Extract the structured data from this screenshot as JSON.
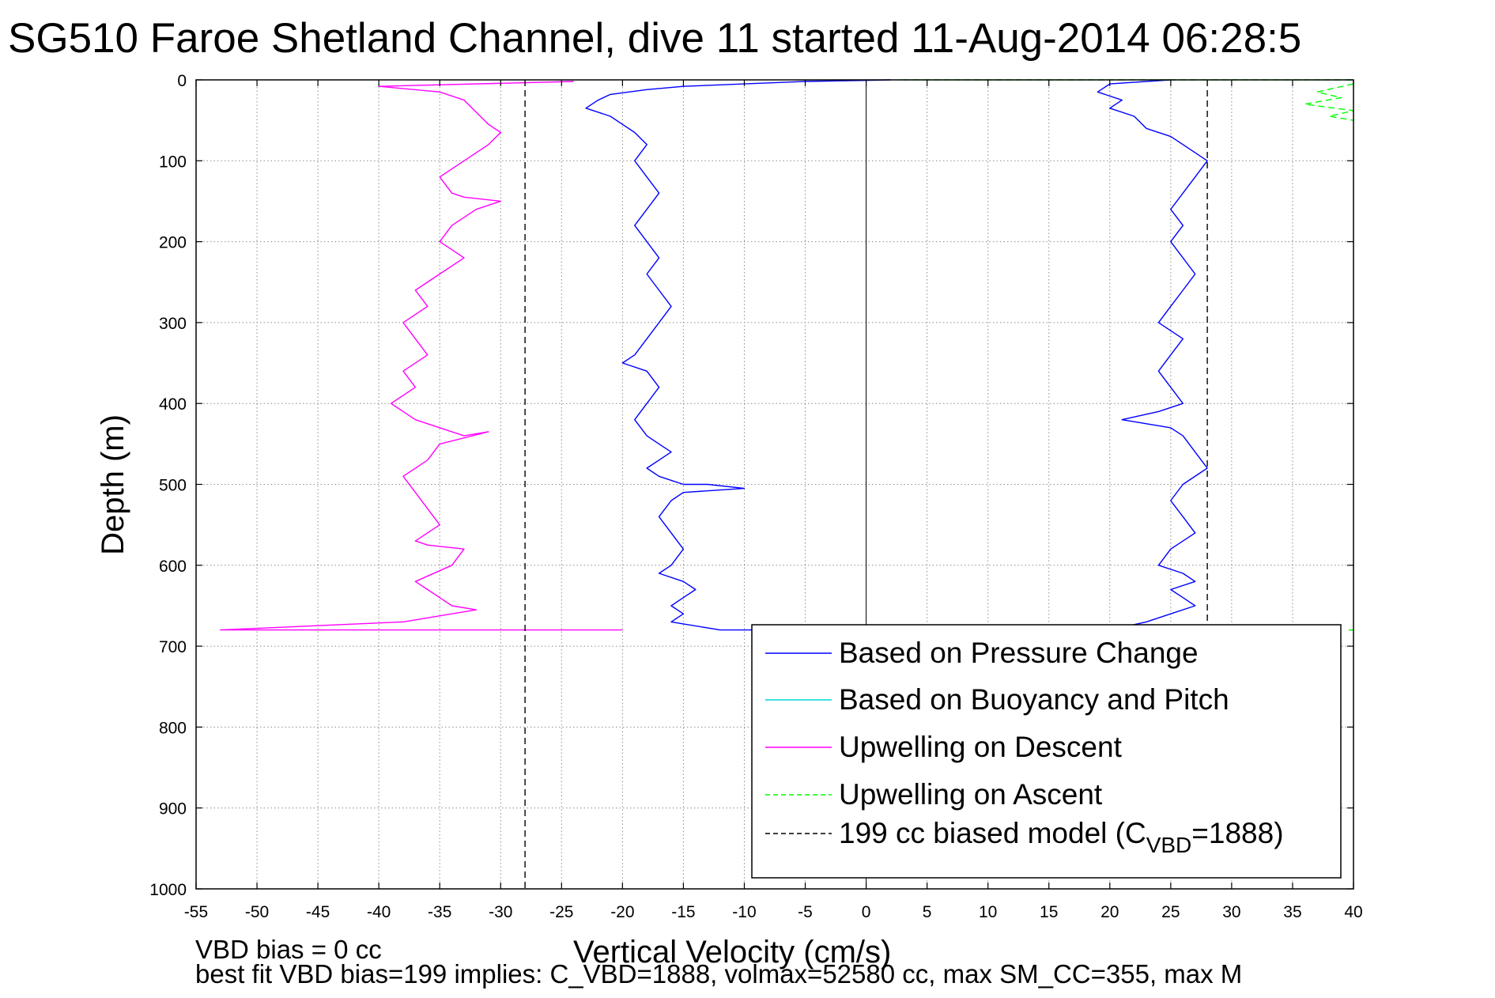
{
  "chart_data": {
    "type": "line",
    "title": "SG510 Faroe Shetland Channel, dive 11 started 11-Aug-2014 06:28:5",
    "xlabel": "Vertical Velocity (cm/s)",
    "ylabel": "Depth (m)",
    "xlim": [
      -55,
      40
    ],
    "ylim": [
      0,
      1000
    ],
    "y_reversed": true,
    "grid": true,
    "legend_position": "lower-right",
    "xticks": [
      "-55",
      "-50",
      "-45",
      "-40",
      "-35",
      "-30",
      "-25",
      "-20",
      "-15",
      "-10",
      "-5",
      "0",
      "5",
      "10",
      "15",
      "20",
      "25",
      "30",
      "35",
      "40"
    ],
    "yticks": [
      "0",
      "100",
      "200",
      "300",
      "400",
      "500",
      "600",
      "700",
      "800",
      "900",
      "1000"
    ],
    "zero_line_x": 0,
    "series": [
      {
        "name": "Based on Pressure Change",
        "color": "#0000ff",
        "style": "solid",
        "segments": [
          {
            "x": [
              2,
              -5,
              -10,
              -15,
              -18,
              -21,
              -22,
              -23,
              -21,
              -20,
              -19,
              -18,
              -19,
              -18,
              -17,
              -18,
              -19,
              -18,
              -17,
              -18,
              -17,
              -16,
              -17,
              -18,
              -19,
              -20,
              -18,
              -17,
              -18,
              -19,
              -18,
              -17,
              -16,
              -17,
              -18,
              -17,
              -16,
              -15,
              -13,
              -10,
              -15,
              -16,
              -17,
              -16,
              -15,
              -16,
              -17,
              -15,
              -14,
              -15,
              -16,
              -15,
              -16,
              -12,
              -3
            ],
            "y": [
              0,
              2,
              5,
              8,
              12,
              18,
              25,
              35,
              45,
              55,
              65,
              80,
              100,
              120,
              140,
              160,
              180,
              200,
              220,
              240,
              260,
              280,
              300,
              320,
              340,
              350,
              360,
              380,
              400,
              420,
              440,
              450,
              460,
              470,
              480,
              490,
              495,
              500,
              500,
              505,
              510,
              520,
              540,
              560,
              580,
              600,
              610,
              620,
              630,
              640,
              650,
              660,
              670,
              680,
              680
            ]
          },
          {
            "x": [
              25,
              20,
              19,
              21,
              20,
              22,
              23,
              25,
              26,
              27,
              28,
              27,
              26,
              25,
              26,
              25,
              26,
              27,
              26,
              25,
              24,
              26,
              25,
              24,
              25,
              26,
              24,
              21,
              25,
              26,
              27,
              28,
              26,
              25,
              26,
              27,
              25,
              24,
              26,
              27,
              25,
              26,
              27,
              25,
              23,
              20
            ],
            "y": [
              0,
              5,
              15,
              25,
              35,
              45,
              60,
              70,
              80,
              90,
              100,
              120,
              140,
              160,
              180,
              200,
              220,
              240,
              260,
              280,
              300,
              320,
              340,
              360,
              380,
              400,
              410,
              420,
              430,
              440,
              460,
              480,
              500,
              520,
              540,
              560,
              580,
              600,
              610,
              620,
              630,
              640,
              650,
              660,
              670,
              680
            ]
          }
        ]
      },
      {
        "name": "Based on Buoyancy and Pitch",
        "color": "#00d7d7",
        "style": "solid",
        "segments": []
      },
      {
        "name": "Upwelling on Descent",
        "color": "#ff00ff",
        "style": "solid",
        "segments": [
          {
            "x": [
              -24,
              -40,
              -35,
              -33,
              -32,
              -31,
              -30,
              -31,
              -33,
              -35,
              -34,
              -33,
              -30,
              -32,
              -34,
              -35,
              -33,
              -35,
              -37,
              -36,
              -38,
              -37,
              -36,
              -38,
              -37,
              -39,
              -38,
              -37,
              -35,
              -33,
              -31,
              -35,
              -36,
              -38,
              -37,
              -36,
              -35,
              -37,
              -36,
              -33,
              -34,
              -37,
              -36,
              -35,
              -34,
              -32,
              -34,
              -38,
              -53,
              -20
            ],
            "y": [
              2,
              8,
              15,
              25,
              40,
              55,
              65,
              80,
              100,
              120,
              140,
              145,
              150,
              160,
              180,
              200,
              220,
              240,
              260,
              280,
              300,
              320,
              340,
              360,
              380,
              400,
              410,
              420,
              430,
              440,
              435,
              450,
              470,
              490,
              510,
              530,
              550,
              570,
              575,
              580,
              600,
              620,
              630,
              640,
              650,
              655,
              660,
              670,
              680,
              680
            ]
          }
        ]
      },
      {
        "name": "Upwelling on Ascent",
        "color": "#00ff00",
        "style": "dashed",
        "segments": [
          {
            "x": [
              3,
              15,
              30,
              40
            ],
            "y": [
              0,
              0,
              0,
              0
            ]
          },
          {
            "x": [
              40,
              37,
              39,
              36,
              40,
              38,
              40
            ],
            "y": [
              5,
              15,
              22,
              30,
              38,
              45,
              50
            ]
          },
          {
            "x": [
              40
            ],
            "y": [
              680
            ]
          }
        ]
      },
      {
        "name": "199 cc biased model (C_VBD=1888)",
        "color": "#000000",
        "style": "dashed",
        "segments": [
          {
            "x": [
              -28,
              -28
            ],
            "y": [
              0,
              1000
            ]
          },
          {
            "x": [
              28,
              28
            ],
            "y": [
              0,
              680
            ]
          }
        ]
      }
    ],
    "legend": [
      {
        "label": "Based on Pressure Change",
        "color": "#0000ff",
        "style": "solid"
      },
      {
        "label": "Based on Buoyancy and Pitch",
        "color": "#00d7d7",
        "style": "solid"
      },
      {
        "label": "Upwelling on Descent",
        "color": "#ff00ff",
        "style": "solid"
      },
      {
        "label": "Upwelling on Ascent",
        "color": "#00ff00",
        "style": "dashed"
      },
      {
        "label_main": "199 cc biased model (C",
        "label_sub": "VBD",
        "label_tail": "=1888)",
        "color": "#000000",
        "style": "dashed"
      }
    ],
    "annotations": [
      "VBD bias = 0 cc",
      "best fit VBD bias=199 implies: C_VBD=1888, volmax=52580 cc, max SM_CC=355, max M"
    ]
  }
}
